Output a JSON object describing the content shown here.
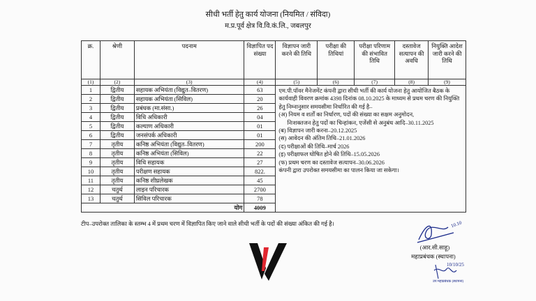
{
  "header": {
    "title": "सीधी भर्ती हेतु कार्य योजना (नियमित / संविदा)",
    "subtitle": "म.प्र.पूर्व क्षेत्र वि.वि.कं.लि., जबलपुर"
  },
  "table": {
    "columns": [
      "क्र.",
      "श्रेणी",
      "पदनाम",
      "विज्ञापित पद संख्या",
      "विज्ञापन जारी करने की तिथि",
      "परीक्षा की तिथियां",
      "परीक्षा परिणाम की संभावित तिथि",
      "दस्तावेज सत्यापन की अवधि",
      "नियुक्ति आदेश जारी करने की तिथि"
    ],
    "column_numbers": [
      "(1)",
      "(2)",
      "(3)",
      "(4)",
      "(5)",
      "(6)",
      "(7)",
      "(8)",
      "(9)"
    ],
    "rows": [
      {
        "no": "1",
        "category": "द्वितीय",
        "post": "सहायक अभियंता (विद्युत–वितरण)",
        "count": "63"
      },
      {
        "no": "2",
        "category": "द्वितीय",
        "post": "सहायक अभियंता (सिविल)",
        "count": "20"
      },
      {
        "no": "3",
        "category": "द्वितीय",
        "post": "प्रबंधक (मा.संसा.)",
        "count": "26"
      },
      {
        "no": "4",
        "category": "द्वितीय",
        "post": "विधि अधिकारी",
        "count": "04"
      },
      {
        "no": "5",
        "category": "द्वितीय",
        "post": "कल्याण अधिकारी",
        "count": "01"
      },
      {
        "no": "6",
        "category": "द्वितीय",
        "post": "जनसंपर्क अधिकारी",
        "count": "01"
      },
      {
        "no": "7",
        "category": "तृतीय",
        "post": "कनिष्ठ अभियंता (विद्युत–वितरण)",
        "count": "200"
      },
      {
        "no": "8",
        "category": "तृतीय",
        "post": "कनिष्ठ अभियंता (सिविल)",
        "count": "22"
      },
      {
        "no": "9",
        "category": "तृतीय",
        "post": "विधि सहायक",
        "count": "27"
      },
      {
        "no": "10",
        "category": "तृतीय",
        "post": "परीक्षण सहायक",
        "count": "822."
      },
      {
        "no": "11",
        "category": "तृतीय",
        "post": "कनिष्ठ शीघ्रलेखक",
        "count": "45"
      },
      {
        "no": "12",
        "category": "चतुर्थ",
        "post": "लाइन परिचारक",
        "count": "2700"
      },
      {
        "no": "13",
        "category": "चतुर्थ",
        "post": "सिविल परिचारक",
        "count": "78"
      }
    ],
    "total_label": "योग",
    "total": "4009",
    "notes": {
      "intro": "एम.पी.पॉवर मैनेजमेंट कंपनी द्वारा सीधी भर्ती की कार्य योजना हेतु आयोजित बैठक के कार्यवाही विवरण क्रमांक 4398 दिनांक 08.10.2025 के माध्यम से प्रथम चरण की नियुक्ति हेतु निम्नानुसार समयसीमा निर्धारित की गई है–",
      "a_line1": "(अ) नियम व शर्तों का निर्धारण, पदों की संख्या का सक्षम अनुमोदन,",
      "a_line2": "निःशक्तजन हेतु पदों का चिन्हांकन, एजेंसी से अनुबंध आदि–30.11.2025",
      "items": [
        "(ब) विज्ञापन जारी करना–20.12.2025",
        "(स) आवेदन की अंतिम तिथि–21.01.2026",
        "(द) परीक्षाओं की तिथि–मार्च 2026",
        "(इ) परीक्षाफल घोषित होने की तिथि–15.05.2026",
        "(फ) प्रथम चरण का दस्तावेज सत्यापन–30.06.2026"
      ],
      "closing": "कंपनी द्वारा उपरोक्त समयसीमा का पालन किया जा सकेगा।"
    }
  },
  "footnote": "टीप–उपरोक्त तालिका के स्तम्भ 4 में प्रथम चरण में विज्ञापित किए जाने वाले सीधी भर्ती के पदों की संख्या अंकित की गई है।",
  "signatory": {
    "name": "(आर.सी.साहू)",
    "designation": "महाप्रबंधक (स्थापना)",
    "sign_date": "10.10",
    "second_sign_date": "10/10/25",
    "second_stamp": "उप महाप्रबंधक (स्थापना)"
  },
  "colors": {
    "logo_black": "#111111",
    "logo_red": "#e0262f",
    "ink": "#1a2a8a"
  }
}
